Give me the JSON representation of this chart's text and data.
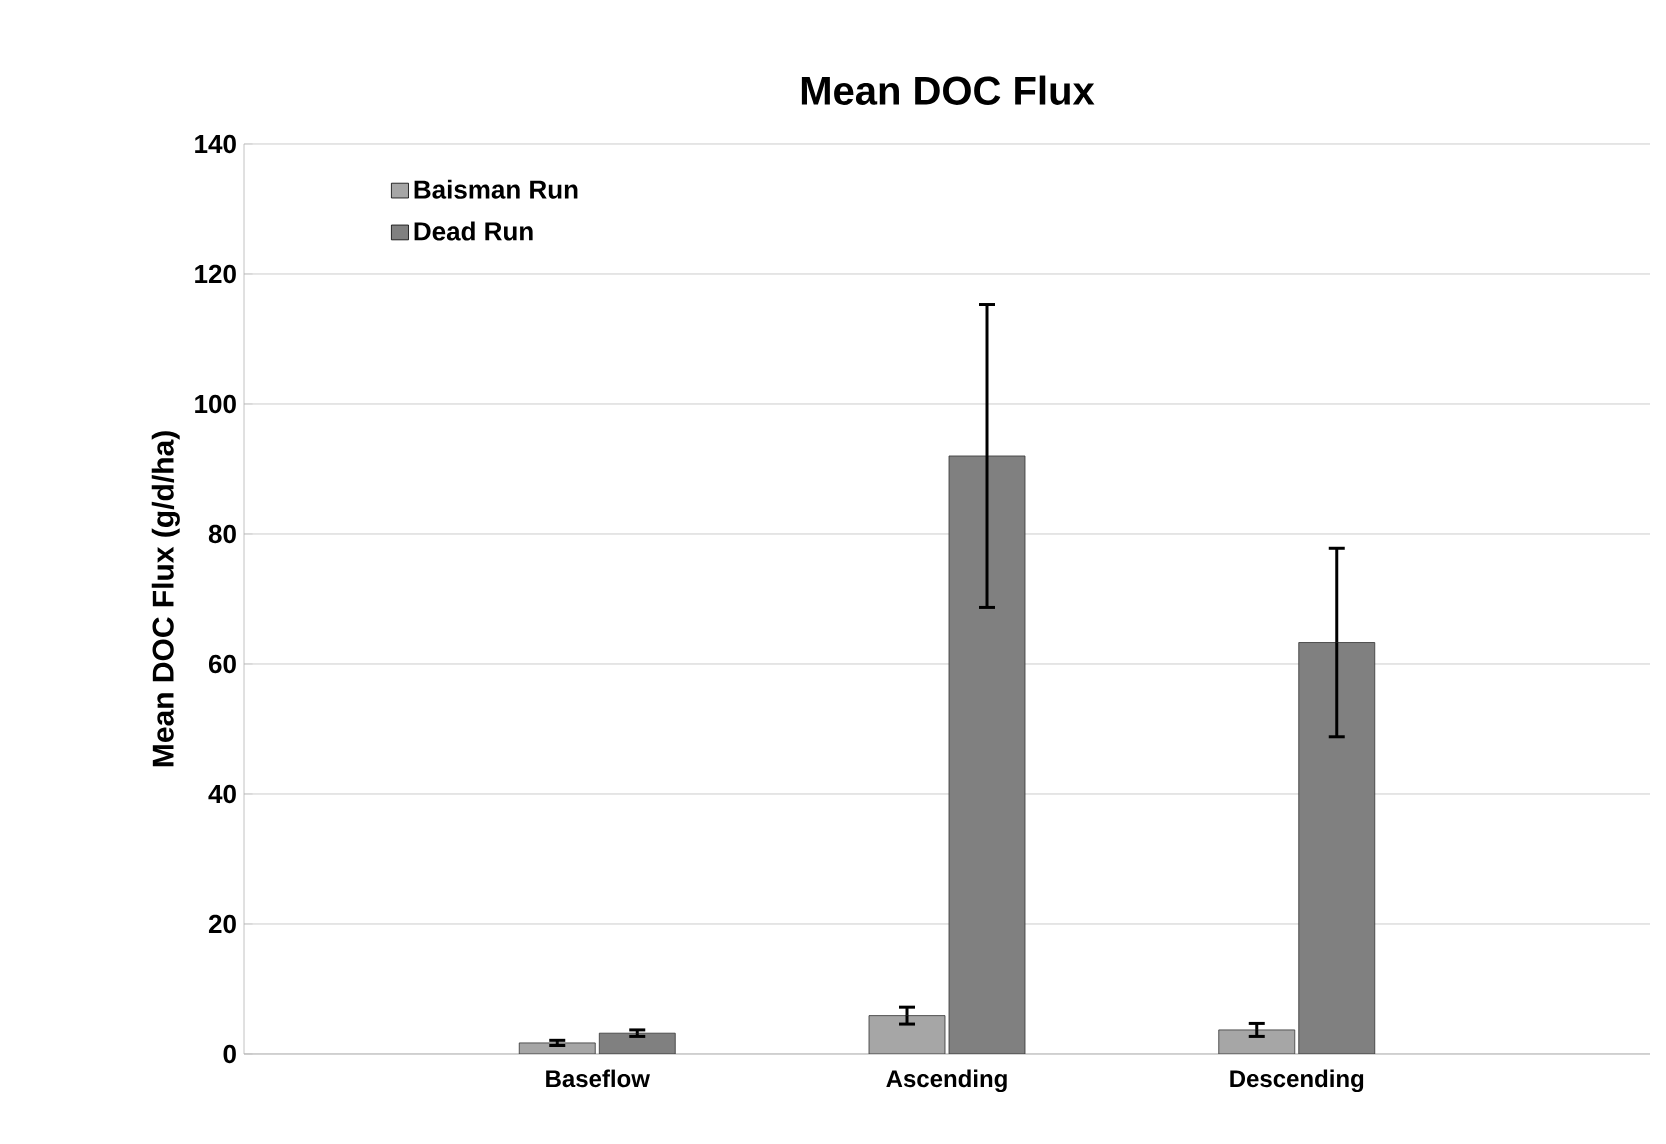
{
  "chart_data": {
    "type": "bar",
    "title": "Mean DOC Flux",
    "ylabel": "Mean DOC Flux (g/d/ha)",
    "categories": [
      "Baseflow",
      "Ascending",
      "Descending"
    ],
    "series": [
      {
        "name": "Baisman Run",
        "color": "#a6a6a6",
        "values": [
          1.7,
          5.9,
          3.7
        ],
        "errors": [
          0.4,
          1.3,
          1.0
        ]
      },
      {
        "name": "Dead Run",
        "color": "#808080",
        "values": [
          3.2,
          92,
          63.3
        ],
        "errors": [
          0.5,
          23.3,
          14.5
        ]
      }
    ],
    "ylim": [
      0,
      140
    ],
    "yticks": [
      0,
      20,
      40,
      60,
      80,
      100,
      120,
      140
    ],
    "grid": "y",
    "legend": "top left"
  }
}
